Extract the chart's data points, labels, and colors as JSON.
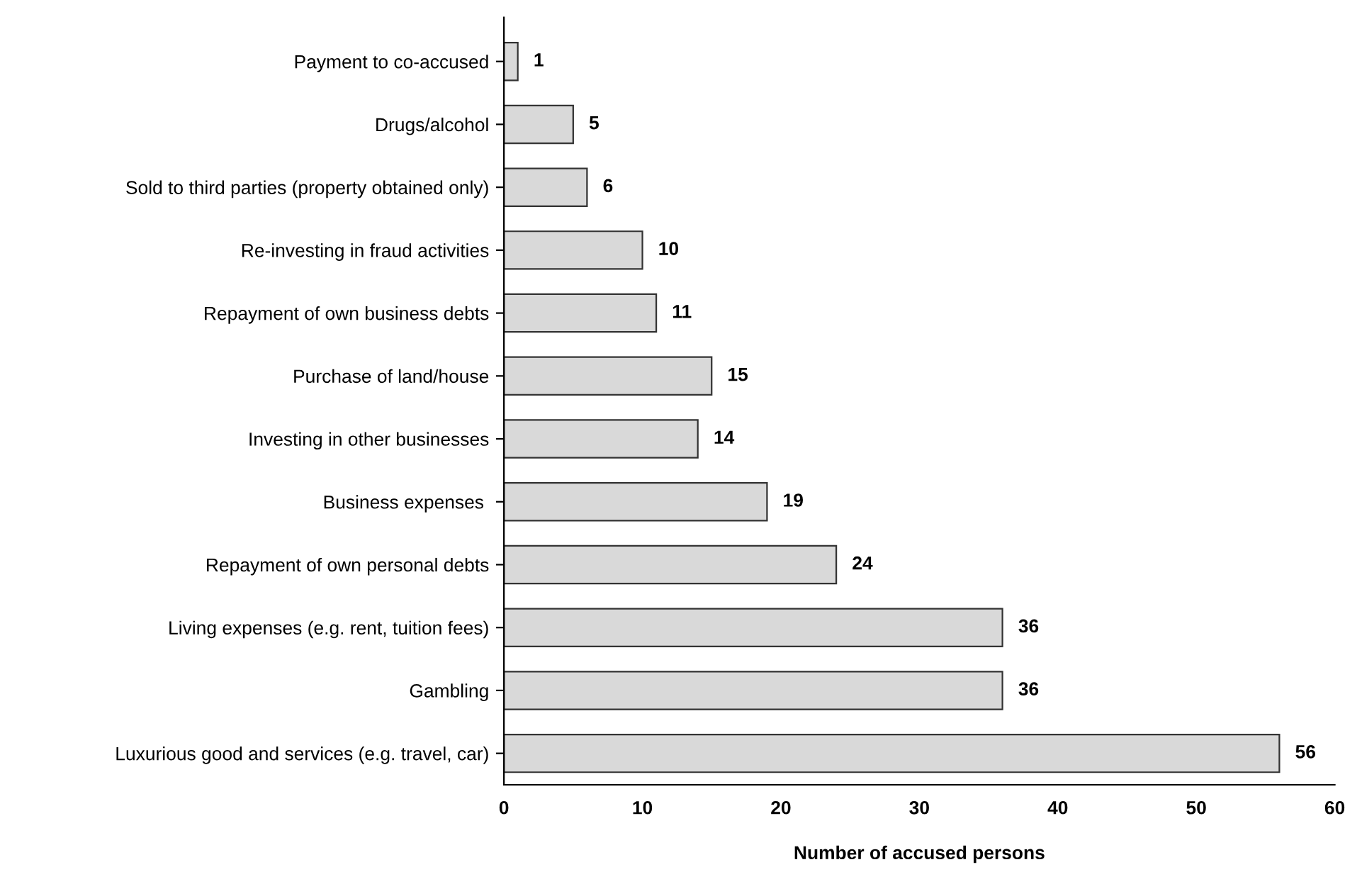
{
  "chart_data": {
    "type": "bar",
    "orientation": "horizontal",
    "categories": [
      "Payment to co-accused",
      "Drugs/alcohol",
      "Sold to third parties (property obtained only)",
      "Re-investing in fraud activities",
      "Repayment of own business debts",
      "Purchase of land/house",
      "Investing in other businesses",
      "Business expenses ",
      "Repayment of own personal debts",
      "Living expenses (e.g. rent, tuition fees)",
      "Gambling",
      "Luxurious good and services (e.g. travel, car)"
    ],
    "values": [
      1,
      5,
      6,
      10,
      11,
      15,
      14,
      19,
      24,
      36,
      36,
      56
    ],
    "color": "#d9d9d9",
    "xlabel": "Number of accused persons",
    "xlim": [
      0,
      60
    ],
    "xticks": [
      0,
      10,
      20,
      30,
      40,
      50,
      60
    ],
    "data_labels": true,
    "grid": false,
    "legend": false
  }
}
